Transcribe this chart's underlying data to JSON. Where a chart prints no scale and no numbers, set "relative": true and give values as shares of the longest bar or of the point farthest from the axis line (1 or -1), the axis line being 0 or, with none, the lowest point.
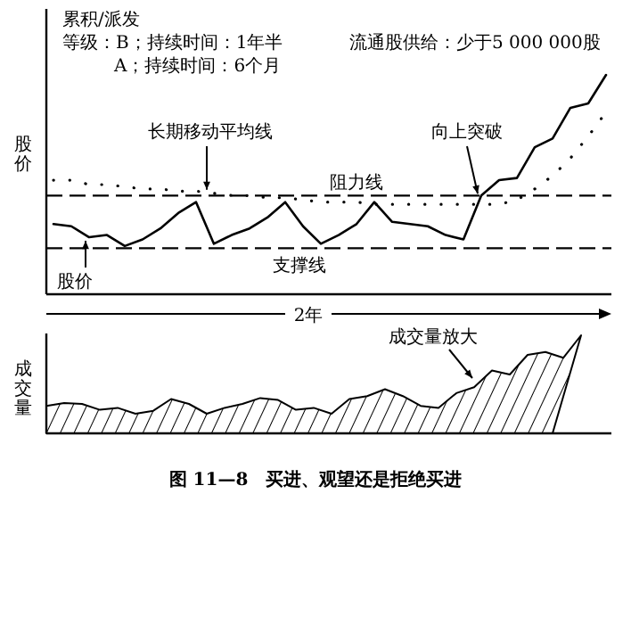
{
  "chart_data": [
    {
      "type": "line",
      "relative": true,
      "xlabel": "2年",
      "ylabel": "股价",
      "categories": [
        null,
        null,
        null,
        null,
        null,
        null,
        null,
        null,
        null,
        null,
        null,
        null,
        null,
        null,
        null,
        null,
        null,
        null,
        null,
        null,
        null,
        null,
        null,
        null,
        null,
        null,
        null,
        null,
        null,
        null,
        null,
        null
      ],
      "series": [
        {
          "name": "股价",
          "color": "#000000",
          "line_style": "solid",
          "values": [
            0.32,
            0.31,
            0.26,
            0.27,
            0.22,
            0.25,
            0.3,
            0.37,
            0.42,
            0.23,
            0.27,
            0.3,
            0.35,
            0.42,
            0.31,
            0.23,
            0.27,
            0.32,
            0.42,
            0.33,
            0.32,
            0.31,
            0.27,
            0.25,
            0.45,
            0.52,
            0.53,
            0.67,
            0.71,
            0.85,
            0.87,
            1.0
          ]
        },
        {
          "name": "长期移动平均线",
          "color": "#000000",
          "line_style": "dotted",
          "values": [
            0.52,
            0.52,
            0.5,
            0.5,
            0.49,
            0.48,
            0.48,
            0.47,
            0.47,
            0.46,
            0.45,
            0.45,
            0.44,
            0.44,
            0.43,
            0.42,
            0.42,
            0.42,
            0.41,
            0.41,
            0.41,
            0.41,
            0.41,
            0.41,
            0.41,
            0.41,
            0.43,
            0.48,
            0.54,
            0.62,
            0.72,
            0.83
          ]
        }
      ],
      "ref_lines": [
        {
          "axis": "y",
          "value": 0.45,
          "label": "阻力线",
          "line_style": "dashed",
          "color": "#000000"
        },
        {
          "axis": "y",
          "value": 0.21,
          "label": "支撑线",
          "line_style": "dashed",
          "color": "#000000"
        }
      ],
      "annotations": [
        "累积/派发",
        "等级：B；持续时间：1年半",
        "A；持续时间：6个月",
        "流通股供给：少于5 000 000股",
        "向上突破"
      ]
    },
    {
      "type": "area",
      "relative": true,
      "ylabel": "成交量",
      "categories": [
        null,
        null,
        null,
        null,
        null,
        null,
        null,
        null,
        null,
        null,
        null,
        null,
        null,
        null,
        null,
        null,
        null,
        null,
        null,
        null,
        null,
        null,
        null,
        null,
        null,
        null,
        null,
        null,
        null,
        null,
        null
      ],
      "series": [
        {
          "color": "#000000",
          "values": [
            0.28,
            0.31,
            0.3,
            0.24,
            0.26,
            0.2,
            0.23,
            0.35,
            0.3,
            0.2,
            0.26,
            0.3,
            0.36,
            0.34,
            0.24,
            0.26,
            0.2,
            0.35,
            0.38,
            0.45,
            0.38,
            0.28,
            0.26,
            0.41,
            0.47,
            0.64,
            0.6,
            0.8,
            0.83,
            0.77,
            1.0
          ]
        }
      ],
      "annotations": [
        "成交量放大",
        "图 11—8　买进、观望还是拒绝买进"
      ]
    }
  ]
}
